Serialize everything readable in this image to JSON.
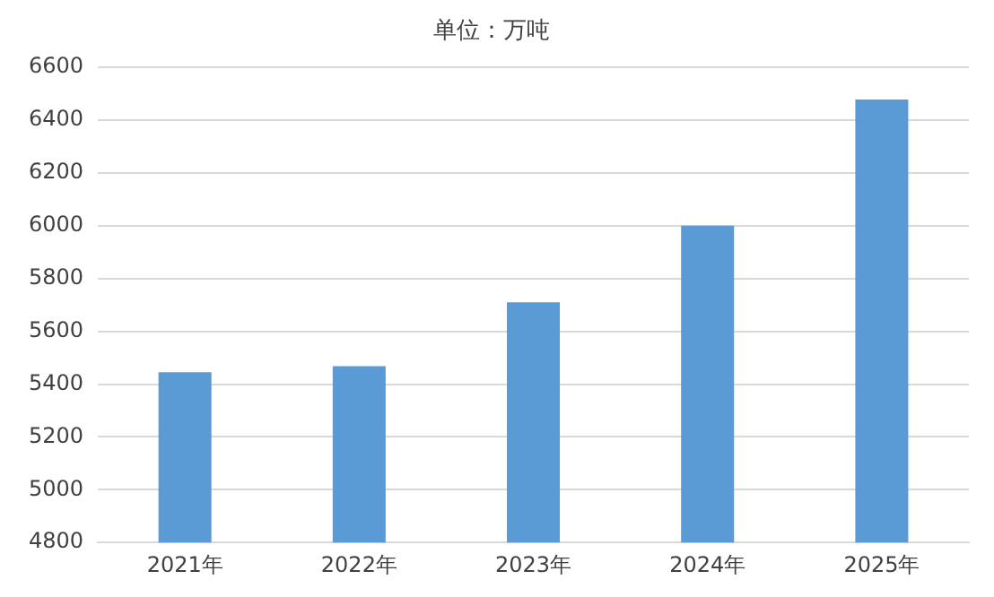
{
  "chart_data": {
    "type": "bar",
    "title": "单位：万吨",
    "categories": [
      "2021年",
      "2022年",
      "2023年",
      "2024年",
      "2025年"
    ],
    "values": [
      5445,
      5468,
      5710,
      6000,
      6478
    ],
    "color": "#5b9bd5",
    "ylim": [
      4800,
      6600
    ],
    "yticks": [
      4800,
      5000,
      5200,
      5400,
      5600,
      5800,
      6000,
      6200,
      6400,
      6600
    ],
    "grid": "y"
  }
}
